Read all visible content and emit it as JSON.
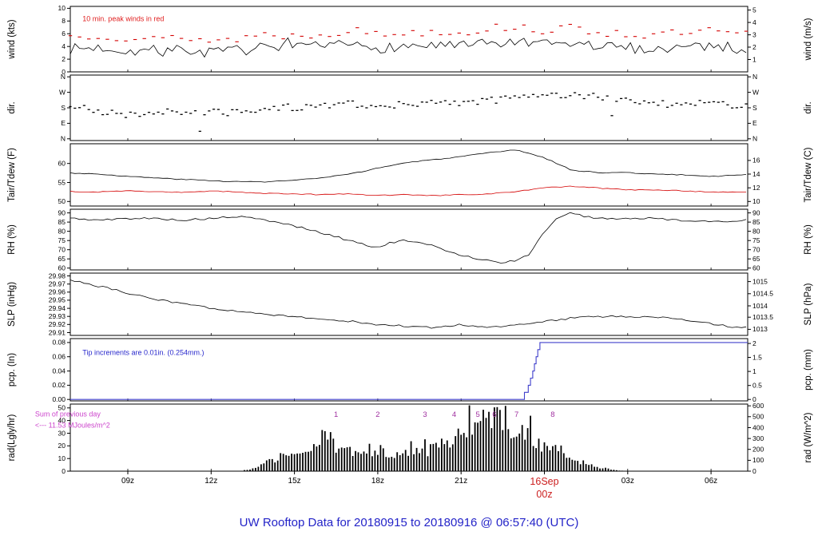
{
  "title": "UW Rooftop Data for 20180915  to  20180916 @ 06:57:40  (UTC)",
  "colors": {
    "trace_black": "#000000",
    "trace_red": "#d40000",
    "annotation_red": "#e02020",
    "pcp_blue": "#4040cc",
    "annotation_blue": "#2828cc",
    "magenta": "#cc44cc",
    "tip_purple": "#a030a0",
    "date_red": "#cc2020",
    "title_blue": "#2424c8"
  },
  "x_axis": {
    "start_hour": 6.93,
    "end_hour": 31.32,
    "ticks": [
      {
        "hour": 9,
        "label": "09z",
        "color": "#000000"
      },
      {
        "hour": 12,
        "label": "12z",
        "color": "#000000"
      },
      {
        "hour": 15,
        "label": "15z",
        "color": "#000000"
      },
      {
        "hour": 18,
        "label": "18z",
        "color": "#000000"
      },
      {
        "hour": 21,
        "label": "21z",
        "color": "#000000"
      },
      {
        "hour": 24,
        "label": "16Sep",
        "label2": "00z",
        "color": "#cc2020"
      },
      {
        "hour": 27,
        "label": "03z",
        "color": "#000000"
      },
      {
        "hour": 30,
        "label": "06z",
        "color": "#000000"
      }
    ]
  },
  "chart_data": [
    {
      "id": "wind",
      "type": "line",
      "left_label": "wind (kts)",
      "right_label": "wind (m/s)",
      "ylim": [
        0,
        10.3
      ],
      "left_ticks": [
        [
          0,
          "0"
        ],
        [
          2,
          "2"
        ],
        [
          4,
          "4"
        ],
        [
          6,
          "6"
        ],
        [
          8,
          "8"
        ],
        [
          10,
          "10"
        ]
      ],
      "right_ticks": [
        [
          1.944,
          "1"
        ],
        [
          3.889,
          "2"
        ],
        [
          5.833,
          "3"
        ],
        [
          7.778,
          "4"
        ],
        [
          9.722,
          "5"
        ]
      ],
      "annotations": [
        {
          "text": "10 min. peak winds in red",
          "color": "#e02020",
          "fx": 0.018,
          "fy": 0.14
        }
      ],
      "series": [
        {
          "name": "wind-10min",
          "style": "line",
          "color": "#000000",
          "seed": 7,
          "step_min": 10,
          "noise": 0.85,
          "spike": 2.4,
          "anchors_h": [
            7,
            8,
            9,
            10,
            11,
            12,
            13,
            14,
            15,
            16,
            17,
            18,
            19,
            20,
            21,
            22,
            23,
            24,
            25,
            26,
            27,
            28,
            29,
            30,
            31
          ],
          "anchors_v": [
            3.6,
            3.8,
            3.4,
            3.2,
            3.5,
            3.0,
            3.4,
            3.8,
            3.6,
            4.0,
            4.2,
            3.8,
            4.0,
            4.2,
            4.0,
            4.4,
            4.6,
            4.2,
            4.4,
            4.0,
            3.8,
            3.6,
            4.0,
            4.2,
            3.6
          ]
        },
        {
          "name": "wind-peak",
          "style": "dashes",
          "color": "#d40000",
          "seed": 13,
          "step_min": 20,
          "noise": 0.7,
          "anchors_h": [
            7,
            8,
            9,
            10,
            11,
            12,
            13,
            14,
            15,
            16,
            17,
            18,
            19,
            20,
            21,
            22,
            23,
            24,
            25,
            26,
            27,
            28,
            29,
            30,
            31
          ],
          "anchors_v": [
            5.6,
            5.9,
            5.4,
            5.0,
            5.6,
            4.8,
            5.3,
            6.0,
            5.6,
            6.1,
            6.5,
            6.0,
            6.1,
            6.5,
            6.2,
            6.8,
            7.2,
            6.5,
            6.8,
            6.3,
            6.0,
            5.7,
            6.1,
            6.4,
            5.8
          ]
        }
      ]
    },
    {
      "id": "dir",
      "type": "scatter",
      "left_label": "dir.",
      "right_label": "dir.",
      "ylim": [
        -10,
        370
      ],
      "left_ticks": [
        [
          0,
          "N"
        ],
        [
          90,
          "E"
        ],
        [
          180,
          "S"
        ],
        [
          270,
          "W"
        ],
        [
          360,
          "N"
        ]
      ],
      "right_ticks": [
        [
          0,
          "N"
        ],
        [
          90,
          "E"
        ],
        [
          180,
          "S"
        ],
        [
          270,
          "W"
        ],
        [
          360,
          "N"
        ]
      ],
      "annotations": [],
      "series": [
        {
          "name": "wind-direction",
          "style": "scatter",
          "color": "#000000",
          "seed": 21,
          "step_min": 10,
          "noise": 22,
          "anchors_h": [
            7,
            8,
            9,
            10,
            11,
            12,
            13,
            14,
            15,
            16,
            17,
            18,
            19,
            20,
            21,
            22,
            23,
            24,
            25,
            26,
            27,
            28,
            29,
            30,
            31
          ],
          "anchors_v": [
            190,
            160,
            140,
            150,
            160,
            150,
            160,
            175,
            185,
            200,
            205,
            195,
            200,
            210,
            205,
            220,
            235,
            250,
            255,
            245,
            235,
            205,
            195,
            205,
            200
          ]
        }
      ]
    },
    {
      "id": "tair_tdew",
      "type": "line",
      "left_label": "Tair/Tdew (F)",
      "right_label": "Tair/Tdew (C)",
      "ylim": [
        48.8,
        65.2
      ],
      "left_ticks": [
        [
          50,
          "50"
        ],
        [
          55,
          "55"
        ],
        [
          60,
          "60"
        ]
      ],
      "right_ticks": [
        [
          50,
          "10"
        ],
        [
          53.6,
          "12"
        ],
        [
          57.2,
          "14"
        ],
        [
          60.8,
          "16"
        ]
      ],
      "annotations": [],
      "series": [
        {
          "name": "tair",
          "style": "line",
          "color": "#000000",
          "seed": 3,
          "step_min": 10,
          "noise": 0.12,
          "anchors_h": [
            7,
            8,
            9,
            10,
            11,
            12,
            13,
            14,
            15,
            16,
            17,
            18,
            19,
            20,
            21,
            22,
            23,
            24,
            25,
            26,
            27,
            28,
            29,
            30,
            31
          ],
          "anchors_v": [
            57.5,
            57.2,
            56.6,
            56.2,
            55.8,
            55.5,
            55.2,
            55.2,
            55.6,
            56.2,
            57.2,
            58.8,
            60.2,
            61.0,
            61.8,
            62.8,
            63.6,
            61.5,
            58.2,
            57.6,
            57.6,
            57.2,
            57.0,
            56.6,
            57.0
          ]
        },
        {
          "name": "tdew",
          "style": "line",
          "color": "#d40000",
          "seed": 4,
          "step_min": 10,
          "noise": 0.12,
          "anchors_h": [
            7,
            8,
            9,
            10,
            11,
            12,
            13,
            14,
            15,
            16,
            17,
            18,
            19,
            20,
            21,
            22,
            23,
            24,
            25,
            26,
            27,
            28,
            29,
            30,
            31
          ],
          "anchors_v": [
            52.6,
            52.5,
            52.8,
            52.5,
            52.4,
            52.8,
            52.5,
            52.1,
            52.0,
            51.8,
            52.0,
            51.6,
            51.8,
            51.5,
            51.8,
            52.0,
            52.6,
            53.6,
            54.0,
            53.5,
            53.1,
            53.0,
            52.8,
            52.5,
            52.4
          ]
        }
      ]
    },
    {
      "id": "rh",
      "type": "line",
      "left_label": "RH (%)",
      "right_label": "RH (%)",
      "ylim": [
        59,
        92
      ],
      "left_ticks": [
        [
          60,
          "60"
        ],
        [
          65,
          "65"
        ],
        [
          70,
          "70"
        ],
        [
          75,
          "75"
        ],
        [
          80,
          "80"
        ],
        [
          85,
          "85"
        ],
        [
          90,
          "90"
        ]
      ],
      "right_ticks": [
        [
          60,
          "60"
        ],
        [
          65,
          "65"
        ],
        [
          70,
          "70"
        ],
        [
          75,
          "75"
        ],
        [
          80,
          "80"
        ],
        [
          85,
          "85"
        ],
        [
          90,
          "90"
        ]
      ],
      "annotations": [],
      "series": [
        {
          "name": "rh",
          "style": "line",
          "color": "#000000",
          "seed": 5,
          "step_min": 10,
          "noise": 0.55,
          "anchors_h": [
            7,
            8,
            9,
            10,
            11,
            12,
            13,
            14,
            15,
            16,
            17,
            18,
            18.5,
            19,
            20,
            21,
            22,
            22.5,
            23,
            23.5,
            24,
            24.5,
            25,
            25.5,
            26,
            27,
            28,
            29,
            30,
            31
          ],
          "anchors_v": [
            87,
            86,
            87,
            87,
            86,
            87,
            88,
            86,
            83,
            79,
            75,
            71,
            74,
            75,
            72,
            67,
            64,
            63,
            64,
            68,
            80,
            88,
            90,
            88,
            87,
            87,
            87,
            86,
            85,
            86
          ]
        }
      ]
    },
    {
      "id": "slp",
      "type": "line",
      "left_label": "SLP (inHg)",
      "right_label": "SLP (hPa)",
      "ylim": [
        29.9065,
        29.9835
      ],
      "left_ticks": [
        [
          29.91,
          "29.91"
        ],
        [
          29.92,
          "29.92"
        ],
        [
          29.93,
          "29.93"
        ],
        [
          29.94,
          "29.94"
        ],
        [
          29.95,
          "29.95"
        ],
        [
          29.96,
          "29.96"
        ],
        [
          29.97,
          "29.97"
        ],
        [
          29.98,
          "29.98"
        ]
      ],
      "right_ticks": [
        [
          29.914,
          "1013"
        ],
        [
          29.929,
          "1013.5"
        ],
        [
          29.943,
          "1014"
        ],
        [
          29.958,
          "1014.5"
        ],
        [
          29.973,
          "1015"
        ]
      ],
      "annotations": [],
      "series": [
        {
          "name": "slp",
          "style": "line",
          "color": "#000000",
          "seed": 6,
          "step_min": 10,
          "noise": 0.0012,
          "anchors_h": [
            7,
            8,
            9,
            10,
            11,
            12,
            13,
            14,
            15,
            16,
            17,
            18,
            19,
            20,
            21,
            22,
            23,
            24,
            25,
            26,
            27,
            28,
            29,
            30,
            31
          ],
          "anchors_v": [
            29.975,
            29.967,
            29.959,
            29.951,
            29.945,
            29.94,
            29.936,
            29.932,
            29.93,
            29.927,
            29.924,
            29.92,
            29.918,
            29.916,
            29.92,
            29.916,
            29.92,
            29.924,
            29.928,
            29.93,
            29.93,
            29.929,
            29.926,
            29.921,
            29.916
          ]
        }
      ]
    },
    {
      "id": "pcp",
      "type": "step",
      "left_label": "pcp. (In)",
      "right_label": "pcp. (mm)",
      "ylim": [
        -0.002,
        0.0855
      ],
      "left_ticks": [
        [
          0,
          "0.00"
        ],
        [
          0.02,
          "0.02"
        ],
        [
          0.04,
          "0.04"
        ],
        [
          0.06,
          "0.06"
        ],
        [
          0.08,
          "0.08"
        ]
      ],
      "right_ticks": [
        [
          0,
          "0"
        ],
        [
          0.0197,
          "0.5"
        ],
        [
          0.0394,
          "1"
        ],
        [
          0.0591,
          "1.5"
        ],
        [
          0.0787,
          "2"
        ]
      ],
      "annotations": [
        {
          "text": "Tip increments are 0.01in. (0.254mm.)",
          "color": "#2828cc",
          "fx": 0.018,
          "fy": 0.17
        }
      ],
      "series": [
        {
          "name": "pcp-accum",
          "style": "step",
          "color": "#4040cc",
          "steps": [
            [
              6.93,
              0
            ],
            [
              23.28,
              0.01
            ],
            [
              23.42,
              0.02
            ],
            [
              23.5,
              0.03
            ],
            [
              23.58,
              0.04
            ],
            [
              23.64,
              0.05
            ],
            [
              23.7,
              0.06
            ],
            [
              23.76,
              0.07
            ],
            [
              23.84,
              0.08
            ],
            [
              31.32,
              0.08
            ]
          ]
        }
      ]
    },
    {
      "id": "rad",
      "type": "area",
      "left_label": "rad(Lgly/hr)",
      "right_label": "rad (W/m^2)",
      "ylim": [
        0,
        53
      ],
      "left_ticks": [
        [
          0,
          "0"
        ],
        [
          10,
          "10"
        ],
        [
          20,
          "20"
        ],
        [
          30,
          "30"
        ],
        [
          40,
          "40"
        ],
        [
          50,
          "50"
        ]
      ],
      "right_ticks": [
        [
          0,
          "0"
        ],
        [
          8.6,
          "100"
        ],
        [
          17.2,
          "200"
        ],
        [
          25.8,
          "300"
        ],
        [
          34.4,
          "400"
        ],
        [
          43.0,
          "500"
        ],
        [
          51.6,
          "600"
        ]
      ],
      "annotations": [
        {
          "text": "Sum of previous day",
          "color": "#cc44cc",
          "fx": -0.052,
          "fy": 0.1
        },
        {
          "text": "<--- 11.53 MJoules/m^2",
          "color": "#cc44cc",
          "fx": -0.052,
          "fy": 0.27
        }
      ],
      "tips": {
        "color": "#a030a0",
        "fy": 0.11,
        "items": [
          [
            "1",
            16.5
          ],
          [
            "2",
            18.0
          ],
          [
            "3",
            19.7
          ],
          [
            "4",
            20.75
          ],
          [
            "5",
            21.6
          ],
          [
            "6",
            22.2
          ],
          [
            "7",
            23.0
          ],
          [
            "8",
            24.3
          ]
        ]
      },
      "series": [
        {
          "name": "solar-rad",
          "style": "bars",
          "color": "#000000",
          "seed": 9,
          "range": [
            13,
            27.5
          ],
          "anchors_h": [
            13,
            13.5,
            14,
            14.5,
            15,
            15.5,
            16,
            16.3,
            16.6,
            17,
            17.5,
            18,
            18.5,
            19,
            19.5,
            20,
            20.5,
            21,
            21.5,
            22,
            22.3,
            22.6,
            23,
            23.5,
            24,
            24.5,
            25,
            25.5,
            26,
            26.5,
            27
          ],
          "anchors_v": [
            0,
            2,
            7,
            11,
            13,
            15,
            20,
            24,
            14,
            17,
            13,
            15,
            13,
            14,
            15,
            18,
            24,
            33,
            38,
            44,
            48,
            40,
            31,
            26,
            20,
            15,
            8,
            5,
            3,
            1,
            0
          ]
        }
      ]
    }
  ]
}
